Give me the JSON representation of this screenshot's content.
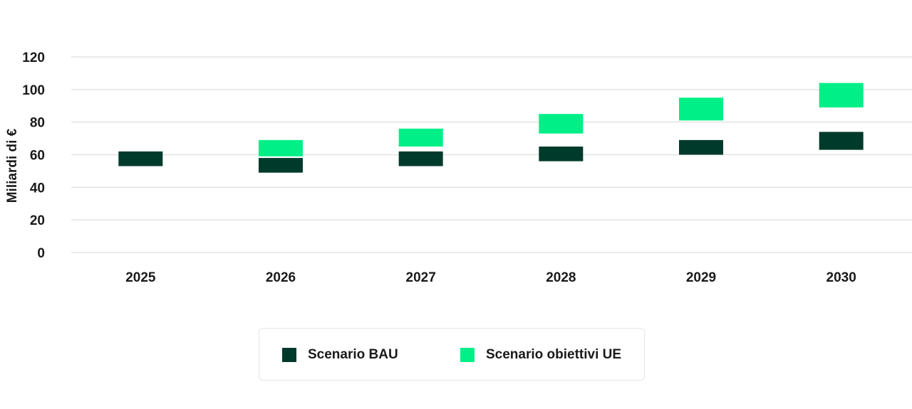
{
  "chart_data": {
    "type": "bar",
    "subtype": "floating-range",
    "ylabel": "Miliardi di €",
    "ylim": [
      0,
      120
    ],
    "yticks": [
      "0",
      "20",
      "40",
      "60",
      "80",
      "100",
      "120"
    ],
    "ytick_values": [
      0,
      20,
      40,
      60,
      80,
      100,
      120
    ],
    "categories": [
      "2025",
      "2026",
      "2027",
      "2028",
      "2029",
      "2030"
    ],
    "grid": true,
    "legend_position": "bottom",
    "series": [
      {
        "name": "Scenario BAU",
        "color": "#003a2b",
        "ranges": [
          [
            53,
            62
          ],
          [
            49,
            58
          ],
          [
            53,
            62
          ],
          [
            56,
            65
          ],
          [
            60,
            69
          ],
          [
            63,
            74
          ]
        ]
      },
      {
        "name": "Scenario obiettivi UE",
        "color": "#00ef87",
        "ranges": [
          [
            null,
            null
          ],
          [
            59,
            69
          ],
          [
            65,
            76
          ],
          [
            73,
            85
          ],
          [
            81,
            95
          ],
          [
            89,
            104
          ]
        ]
      }
    ]
  }
}
